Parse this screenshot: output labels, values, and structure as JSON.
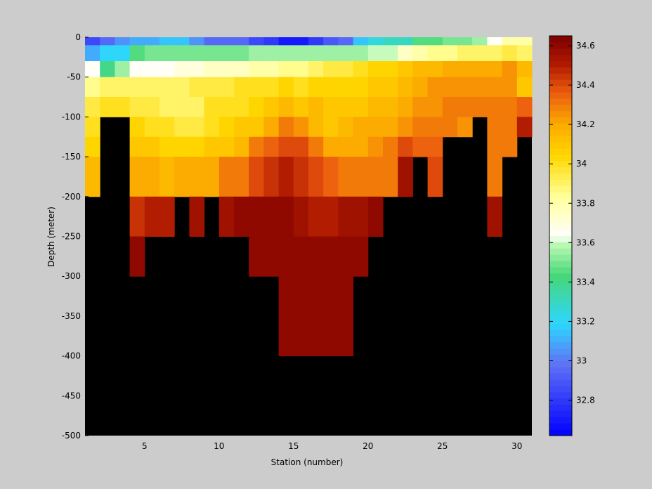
{
  "chart_data": [
    {
      "type": "heatmap",
      "title": "",
      "xlabel": "Station (number)",
      "ylabel": "Depth (meter)",
      "xlim": [
        1,
        31
      ],
      "ylim": [
        -500,
        0
      ],
      "xticks": [
        5,
        10,
        15,
        20,
        25,
        30
      ],
      "yticks": [
        0,
        -50,
        -100,
        -150,
        -200,
        -250,
        -300,
        -350,
        -400,
        -450,
        -500
      ],
      "background": "#000000",
      "colormap": "jet-to-red (blue → cyan → green → white → yellow → orange → dark red)",
      "colorbar": {
        "min": 32.62,
        "max": 34.65,
        "ticks": [
          32.8,
          33,
          33.2,
          33.4,
          33.6,
          33.8,
          34,
          34.2,
          34.4,
          34.6
        ],
        "tick_labels": [
          "32.8",
          "33",
          "33.2",
          "33.4",
          "33.6",
          "33.8",
          "34",
          "34.2",
          "34.4",
          "34.6"
        ]
      },
      "stations": [
        1,
        2,
        3,
        4,
        5,
        6,
        7,
        8,
        9,
        10,
        11,
        12,
        13,
        14,
        15,
        16,
        17,
        18,
        19,
        20,
        21,
        22,
        23,
        24,
        25,
        26,
        27,
        28,
        29,
        30,
        31
      ],
      "layers_top_depth": [
        0,
        -10,
        -30,
        -50,
        -75,
        -100,
        -125,
        -150,
        -200,
        -250,
        -300,
        -400
      ],
      "layers_bottom_depth": [
        -10,
        -30,
        -50,
        -75,
        -100,
        -125,
        -150,
        -200,
        -250,
        -300,
        -400,
        -500
      ],
      "salinity": [
        [
          32.85,
          32.95,
          33.05,
          33.1,
          33.1,
          33.15,
          33.15,
          33.05,
          32.95,
          32.95,
          32.95,
          32.85,
          32.8,
          32.7,
          32.7,
          32.8,
          32.9,
          32.95,
          33.15,
          33.25,
          33.3,
          33.3,
          33.45,
          33.45,
          33.5,
          33.5,
          33.55,
          33.65,
          33.8,
          33.8
        ],
        [
          33.1,
          33.2,
          33.2,
          33.45,
          33.5,
          33.5,
          33.5,
          33.5,
          33.5,
          33.5,
          33.5,
          33.55,
          33.55,
          33.55,
          33.55,
          33.55,
          33.55,
          33.55,
          33.55,
          33.6,
          33.6,
          33.75,
          33.8,
          33.85,
          33.85,
          33.9,
          33.9,
          33.9,
          33.95,
          33.9
        ],
        [
          33.65,
          33.4,
          33.55,
          33.65,
          33.65,
          33.65,
          33.7,
          33.7,
          33.75,
          33.75,
          33.75,
          33.8,
          33.8,
          33.85,
          33.85,
          33.9,
          33.95,
          33.95,
          34.0,
          34.05,
          34.05,
          34.1,
          34.15,
          34.15,
          34.2,
          34.2,
          34.2,
          34.2,
          34.25,
          34.15
        ],
        [
          33.85,
          33.9,
          33.9,
          33.9,
          33.9,
          33.9,
          33.9,
          33.95,
          33.95,
          33.95,
          34.0,
          34.0,
          34.0,
          34.05,
          34.0,
          34.05,
          34.05,
          34.05,
          34.05,
          34.1,
          34.1,
          34.15,
          34.2,
          34.25,
          34.25,
          34.25,
          34.25,
          34.25,
          34.25,
          34.1
        ],
        [
          33.95,
          34.0,
          34.0,
          33.95,
          33.95,
          33.9,
          33.9,
          33.9,
          34.0,
          34.0,
          34.0,
          34.05,
          34.1,
          34.15,
          34.1,
          34.15,
          34.1,
          34.1,
          34.1,
          34.15,
          34.15,
          34.2,
          34.25,
          34.25,
          34.3,
          34.3,
          34.3,
          34.3,
          34.3,
          34.35
        ],
        [
          34.0,
          null,
          null,
          34.05,
          34.0,
          34.0,
          33.95,
          33.95,
          34.0,
          34.05,
          34.1,
          34.1,
          34.2,
          34.3,
          34.25,
          34.15,
          34.1,
          34.15,
          34.2,
          34.2,
          34.2,
          34.25,
          34.3,
          34.3,
          34.3,
          34.25,
          null,
          34.3,
          34.3,
          34.5
        ],
        [
          34.05,
          null,
          null,
          34.1,
          34.1,
          34.05,
          34.05,
          34.05,
          34.1,
          34.1,
          34.15,
          34.3,
          34.35,
          34.4,
          34.4,
          34.3,
          34.2,
          34.2,
          34.2,
          34.25,
          34.3,
          34.4,
          34.35,
          34.35,
          null,
          null,
          null,
          34.3,
          34.3,
          null
        ],
        [
          34.15,
          null,
          null,
          34.2,
          34.2,
          34.15,
          34.2,
          34.2,
          34.2,
          34.3,
          34.3,
          34.4,
          34.45,
          34.5,
          34.45,
          34.4,
          34.35,
          34.3,
          34.3,
          34.3,
          34.3,
          34.55,
          null,
          34.4,
          null,
          null,
          null,
          34.3,
          null,
          null
        ],
        [
          null,
          null,
          null,
          34.45,
          34.5,
          34.5,
          null,
          34.55,
          null,
          34.55,
          34.6,
          34.6,
          34.6,
          34.6,
          34.55,
          34.5,
          34.5,
          34.55,
          34.55,
          34.6,
          null,
          null,
          null,
          null,
          null,
          null,
          null,
          34.55,
          null,
          null
        ],
        [
          null,
          null,
          null,
          34.6,
          null,
          null,
          null,
          null,
          null,
          null,
          null,
          34.6,
          34.6,
          34.6,
          34.6,
          34.6,
          34.6,
          34.6,
          34.6,
          null,
          null,
          null,
          null,
          null,
          null,
          null,
          null,
          null,
          null,
          null
        ],
        [
          null,
          null,
          null,
          null,
          null,
          null,
          null,
          null,
          null,
          null,
          null,
          null,
          null,
          34.6,
          34.6,
          34.6,
          34.6,
          34.6,
          null,
          null,
          null,
          null,
          null,
          null,
          null,
          null,
          null,
          null,
          null,
          null
        ],
        [
          null,
          null,
          null,
          null,
          null,
          null,
          null,
          null,
          null,
          null,
          null,
          null,
          null,
          null,
          null,
          null,
          null,
          null,
          null,
          null,
          null,
          null,
          null,
          null,
          null,
          null,
          null,
          null,
          null,
          null
        ]
      ]
    }
  ]
}
